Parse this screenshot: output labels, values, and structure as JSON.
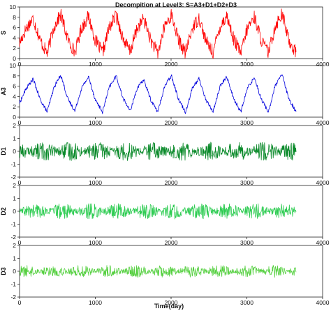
{
  "chart_data": {
    "type": "line",
    "title": "Decompition at Level3: S=A3+D1+D2+D3",
    "xlabel": "Time(day)",
    "xlim": [
      0,
      4000
    ],
    "x_ticks": [
      "0",
      "1000",
      "2000",
      "3000",
      "4000"
    ],
    "grid": false,
    "panels": [
      {
        "ylabel": "S",
        "color": "#ff0000",
        "ylim": [
          0,
          10
        ],
        "y_ticks": [
          "0",
          "2",
          "4",
          "6",
          "8",
          "10"
        ],
        "x": [
          0,
          90,
          180,
          270,
          365,
          455,
          545,
          635,
          730,
          820,
          910,
          1000,
          1095,
          1185,
          1275,
          1365,
          1460,
          1550,
          1640,
          1730,
          1825,
          1915,
          2005,
          2095,
          2190,
          2280,
          2370,
          2460,
          2555,
          2645,
          2735,
          2825,
          2920,
          3010,
          3100,
          3190,
          3285,
          3375,
          3465,
          3555,
          3650
        ],
        "values": [
          3.0,
          5.9,
          7.8,
          3.6,
          1.0,
          6.2,
          8.6,
          3.8,
          1.2,
          6.0,
          8.2,
          3.5,
          1.1,
          6.1,
          8.4,
          3.9,
          1.3,
          5.8,
          7.7,
          3.6,
          1.0,
          6.3,
          8.5,
          3.7,
          1.1,
          5.9,
          7.9,
          3.4,
          1.2,
          6.2,
          8.3,
          3.8,
          1.0,
          6.0,
          8.1,
          3.6,
          1.1,
          6.4,
          8.7,
          3.5,
          1.2
        ],
        "noise_amplitude": 1.3
      },
      {
        "ylabel": "A3",
        "color": "#0000dd",
        "ylim": [
          0,
          10
        ],
        "y_ticks": [
          "0",
          "2",
          "4",
          "6",
          "8",
          "10"
        ],
        "x": [
          0,
          90,
          180,
          270,
          365,
          455,
          545,
          635,
          730,
          820,
          910,
          1000,
          1095,
          1185,
          1275,
          1365,
          1460,
          1550,
          1640,
          1730,
          1825,
          1915,
          2005,
          2095,
          2190,
          2280,
          2370,
          2460,
          2555,
          2645,
          2735,
          2825,
          2920,
          3010,
          3100,
          3190,
          3285,
          3375,
          3465,
          3555,
          3650
        ],
        "values": [
          2.8,
          5.6,
          7.4,
          3.5,
          1.0,
          5.8,
          8.2,
          3.6,
          1.2,
          5.7,
          7.8,
          3.4,
          1.0,
          5.8,
          8.0,
          3.7,
          1.2,
          5.5,
          7.3,
          3.4,
          1.0,
          6.0,
          8.1,
          3.6,
          1.0,
          5.6,
          7.5,
          3.3,
          1.1,
          5.9,
          7.9,
          3.6,
          1.0,
          5.7,
          7.7,
          3.5,
          1.0,
          6.1,
          8.3,
          3.4,
          1.1
        ],
        "noise_amplitude": 0.35
      },
      {
        "ylabel": "D1",
        "color": "#0a8a2a",
        "ylim": [
          -2,
          2
        ],
        "y_ticks": [
          "-2",
          "-1",
          "0",
          "1",
          "2"
        ],
        "x": [
          0,
          3650
        ],
        "values": [
          0,
          0
        ],
        "noise_amplitude": 0.55
      },
      {
        "ylabel": "D2",
        "color": "#2ecc52",
        "ylim": [
          -2,
          2
        ],
        "y_ticks": [
          "-2",
          "-1",
          "0",
          "1",
          "2"
        ],
        "x": [
          0,
          3650
        ],
        "values": [
          0,
          0
        ],
        "noise_amplitude": 0.45
      },
      {
        "ylabel": "D3",
        "color": "#55d040",
        "ylim": [
          -2,
          2
        ],
        "y_ticks": [
          "-2",
          "-1",
          "0",
          "1",
          "2"
        ],
        "x": [
          0,
          3650
        ],
        "values": [
          0,
          0
        ],
        "noise_amplitude": 0.35
      }
    ]
  }
}
